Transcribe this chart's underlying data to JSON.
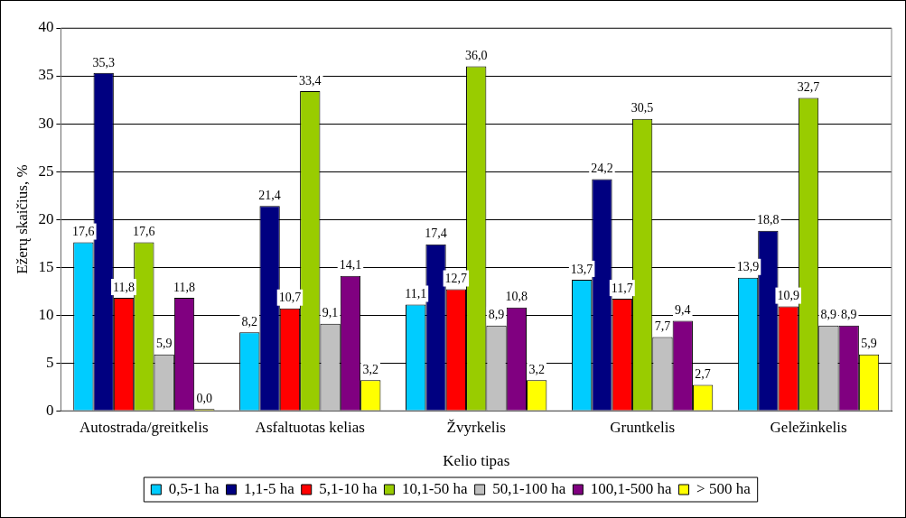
{
  "chart_data": {
    "type": "bar",
    "xlabel": "Kelio tipas",
    "ylabel": "Ežerų skaičius, %",
    "categories": [
      "Autostrada/greitkelis",
      "Asfaltuotas kelias",
      "Žvyrkelis",
      "Gruntkelis",
      "Geležinkelis"
    ],
    "series": [
      {
        "name": "0,5-1 ha",
        "color": "#00ccff",
        "values": [
          17.6,
          8.2,
          11.1,
          13.7,
          13.9
        ],
        "value_labels": [
          "17,6",
          "8,2",
          "11,1",
          "13,7",
          "13,9"
        ]
      },
      {
        "name": "1,1-5 ha",
        "color": "#000080",
        "values": [
          35.3,
          21.4,
          17.4,
          24.2,
          18.8
        ],
        "value_labels": [
          "35,3",
          "21,4",
          "17,4",
          "24,2",
          "18,8"
        ]
      },
      {
        "name": "5,1-10 ha",
        "color": "#ff0000",
        "values": [
          11.8,
          10.7,
          12.7,
          11.7,
          10.9
        ],
        "value_labels": [
          "11,8",
          "10,7",
          "12,7",
          "11,7",
          "10,9"
        ]
      },
      {
        "name": "10,1-50 ha",
        "color": "#99cc00",
        "values": [
          17.6,
          33.4,
          36.0,
          30.5,
          32.7
        ],
        "value_labels": [
          "17,6",
          "33,4",
          "36,0",
          "30,5",
          "32,7"
        ]
      },
      {
        "name": "50,1-100 ha",
        "color": "#c0c0c0",
        "values": [
          5.9,
          9.1,
          8.9,
          7.7,
          8.9
        ],
        "value_labels": [
          "5,9",
          "9,1",
          "8,9",
          "7,7",
          "8,9"
        ]
      },
      {
        "name": "100,1-500 ha",
        "color": "#800080",
        "values": [
          11.8,
          14.1,
          10.8,
          9.4,
          8.9
        ],
        "value_labels": [
          "11,8",
          "14,1",
          "10,8",
          "9,4",
          "8,9"
        ]
      },
      {
        "name": "> 500 ha",
        "color": "#ffff00",
        "values": [
          0.0,
          3.2,
          3.2,
          2.7,
          5.9
        ],
        "value_labels": [
          "0,0",
          "3,2",
          "3,2",
          "2,7",
          "5,9"
        ]
      }
    ],
    "ylim": [
      0,
      40
    ],
    "yticks": [
      0,
      5,
      10,
      15,
      20,
      25,
      30,
      35,
      40
    ],
    "grid": "y",
    "legend": "bottom"
  }
}
